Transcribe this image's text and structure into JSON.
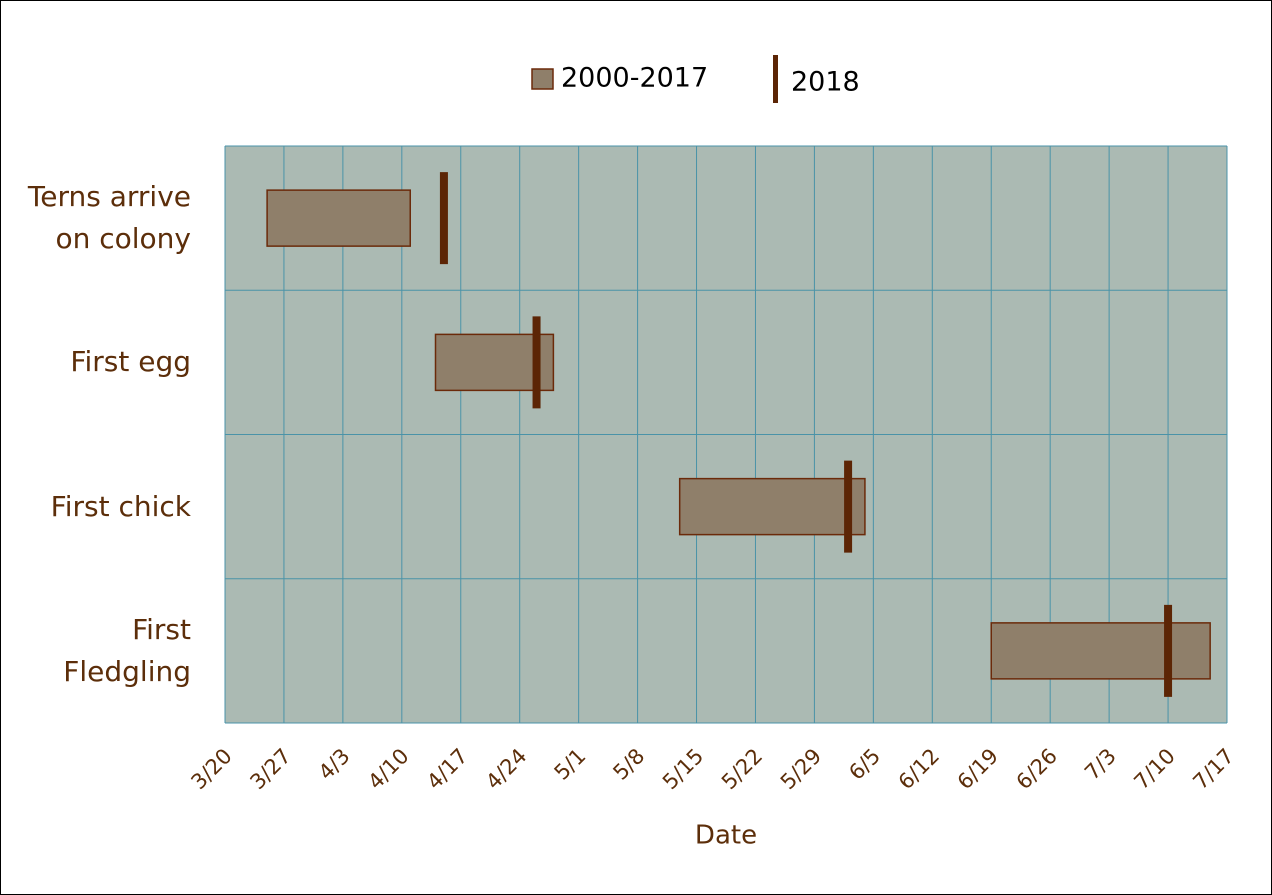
{
  "chart_data": {
    "type": "range-bar",
    "xlabel": "Date",
    "categories": [
      "Terns arrive\non colony",
      "First egg",
      "First chick",
      "First\nFledgling"
    ],
    "series": [
      {
        "name": "2000-2017",
        "color": "#8f7f6a",
        "starts": [
          "3/25",
          "4/14",
          "5/13",
          "6/19"
        ],
        "ends": [
          "4/11",
          "4/28",
          "6/4",
          "7/15"
        ]
      },
      {
        "name": "2018",
        "color": "#5c2505",
        "values": [
          "4/15",
          "4/26",
          "6/2",
          "7/10"
        ]
      }
    ],
    "xlim": [
      "3/20",
      "7/17"
    ],
    "xticks": [
      "3/20",
      "3/27",
      "4/3",
      "4/10",
      "4/17",
      "4/24",
      "5/1",
      "5/8",
      "5/15",
      "5/22",
      "5/29",
      "6/5",
      "6/12",
      "6/19",
      "6/26",
      "7/3",
      "7/10",
      "7/17"
    ],
    "grid": true,
    "legend": "top"
  }
}
